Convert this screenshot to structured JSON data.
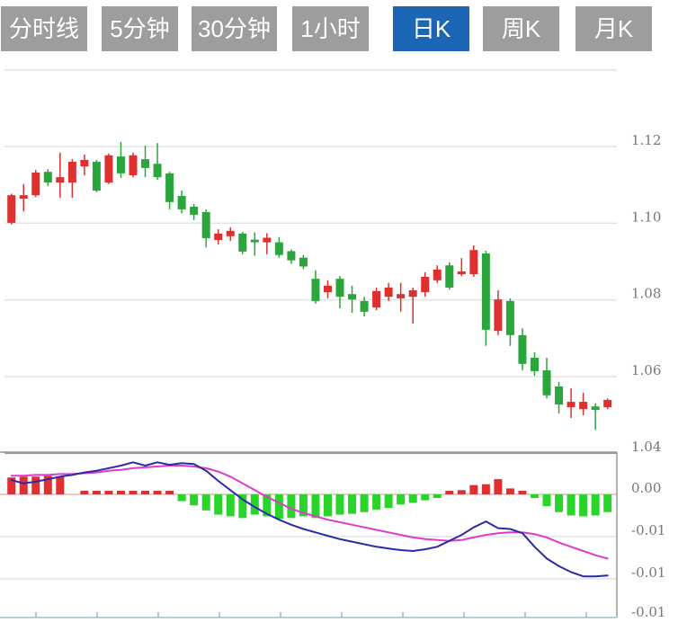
{
  "toolbar": {
    "buttons": [
      {
        "label": "分时线",
        "active": false
      },
      {
        "label": "5分钟",
        "active": false
      },
      {
        "label": "30分钟",
        "active": false
      },
      {
        "label": "1小时",
        "active": false
      },
      {
        "label": "日K",
        "active": true
      },
      {
        "label": "周K",
        "active": false
      },
      {
        "label": "月K",
        "active": false
      }
    ],
    "active_bg": "#1B66B5",
    "inactive_bg": "#9D9D9D",
    "text_color": "#FFFFFF"
  },
  "price_axis": {
    "labels": [
      "1.12",
      "1.10",
      "1.08",
      "1.06",
      "1.04"
    ],
    "values": [
      1.12,
      1.1,
      1.08,
      1.06,
      1.04
    ],
    "unlabeled_gridline": 1.14
  },
  "macd_axis": {
    "labels": [
      "0.00",
      "-0.01",
      "-0.01",
      "-0.01"
    ],
    "values": [
      0,
      -0.005,
      -0.01,
      -0.015
    ]
  },
  "colors": {
    "up": "#DF3030",
    "down": "#2BA63C",
    "macd_up": "#E02F2F",
    "macd_down": "#2BD42B",
    "dif": "#2B2BA8",
    "dea": "#DD3BCE",
    "grid": "#E2E2E2",
    "zero_line": "#F0B4B4",
    "pane_border": "#999999",
    "bottom_axis": "#B9CDD6",
    "tick": "#9DB8C4",
    "axis_text": "#777777"
  },
  "chart_data": {
    "type": "candlestick",
    "panes": [
      "price",
      "macd"
    ],
    "visible_price_range": [
      1.04,
      1.14
    ],
    "visible_macd_range": [
      -0.015,
      0.005
    ],
    "grid": true,
    "candles_ochl": [
      [
        1.1001,
        1.1073,
        1.1077,
        1.0997
      ],
      [
        1.1064,
        1.1073,
        1.1102,
        1.1031
      ],
      [
        1.1073,
        1.1132,
        1.1139,
        1.1068
      ],
      [
        1.1134,
        1.1106,
        1.1141,
        1.1097
      ],
      [
        1.1106,
        1.112,
        1.1184,
        1.1066
      ],
      [
        1.1106,
        1.116,
        1.1167,
        1.1066
      ],
      [
        1.1148,
        1.1165,
        1.1179,
        1.1125
      ],
      [
        1.116,
        1.1085,
        1.1165,
        1.1081
      ],
      [
        1.1106,
        1.1177,
        1.1182,
        1.1102
      ],
      [
        1.1174,
        1.113,
        1.1212,
        1.1118
      ],
      [
        1.1125,
        1.1177,
        1.1184,
        1.112
      ],
      [
        1.1167,
        1.1144,
        1.1202,
        1.112
      ],
      [
        1.1155,
        1.112,
        1.1209,
        1.1113
      ],
      [
        1.113,
        1.1055,
        1.1134,
        1.1036
      ],
      [
        1.1071,
        1.1036,
        1.1085,
        1.1026
      ],
      [
        1.1043,
        1.1022,
        1.105,
        1.1008
      ],
      [
        1.1029,
        1.0961,
        1.1036,
        1.0937
      ],
      [
        1.0956,
        1.0973,
        1.0984,
        1.0944
      ],
      [
        1.0966,
        1.098,
        1.0989,
        1.0954
      ],
      [
        1.0973,
        1.0926,
        1.0977,
        1.0919
      ],
      [
        1.0957,
        1.095,
        1.0976,
        1.0915
      ],
      [
        1.095,
        1.0962,
        1.0974,
        1.0919
      ],
      [
        1.095,
        1.0917,
        1.0964,
        1.091
      ],
      [
        1.0927,
        1.0903,
        1.0932,
        1.0894
      ],
      [
        1.091,
        1.0887,
        1.0917,
        1.088
      ],
      [
        1.0855,
        1.0797,
        1.0877,
        1.079
      ],
      [
        1.082,
        1.0837,
        1.0851,
        1.0804
      ],
      [
        1.0855,
        1.0808,
        1.0862,
        1.0778
      ],
      [
        1.0815,
        1.0801,
        1.0837,
        1.0766
      ],
      [
        1.0797,
        1.0769,
        1.0808,
        1.0757
      ],
      [
        1.078,
        1.0823,
        1.0832,
        1.0773
      ],
      [
        1.0808,
        1.0832,
        1.0844,
        1.0797
      ],
      [
        1.0804,
        1.0815,
        1.0844,
        1.0769
      ],
      [
        1.0808,
        1.0825,
        1.0832,
        1.0738
      ],
      [
        1.082,
        1.086,
        1.0872,
        1.0808
      ],
      [
        1.0851,
        1.0879,
        1.089,
        1.0844
      ],
      [
        1.089,
        1.0832,
        1.0898,
        1.0827
      ],
      [
        1.0867,
        1.0874,
        1.0909,
        1.0862
      ],
      [
        1.0867,
        1.093,
        1.0942,
        1.086
      ],
      [
        1.0921,
        1.0722,
        1.0928,
        1.068
      ],
      [
        1.0719,
        1.0801,
        1.0825,
        1.0708
      ],
      [
        1.0797,
        1.0708,
        1.0804,
        1.068
      ],
      [
        1.0708,
        1.0633,
        1.0726,
        1.0616
      ],
      [
        1.0649,
        1.0614,
        1.0663,
        1.0602
      ],
      [
        1.0616,
        1.0551,
        1.0649,
        1.0543
      ],
      [
        1.0574,
        1.0527,
        1.0586,
        1.0504
      ],
      [
        1.052,
        1.0534,
        1.0569,
        1.0492
      ],
      [
        1.0515,
        1.0534,
        1.0558,
        1.0499
      ],
      [
        1.0522,
        1.0513,
        1.053,
        1.0461
      ],
      [
        1.052,
        1.0539,
        1.0543,
        1.0515
      ]
    ],
    "macd_histogram": [
      0.002,
      0.0021,
      0.0021,
      0.0022,
      0.0021,
      0.0,
      0.0003,
      0.0003,
      0.0002,
      0.0003,
      0.0002,
      0.0003,
      0.0002,
      0.0003,
      -0.0008,
      -0.0013,
      -0.0019,
      -0.0024,
      -0.0026,
      -0.0028,
      -0.0024,
      -0.0026,
      -0.0029,
      -0.0028,
      -0.0026,
      -0.0028,
      -0.0026,
      -0.0024,
      -0.0023,
      -0.0021,
      -0.0018,
      -0.0016,
      -0.0012,
      -0.001,
      -0.0007,
      -0.0004,
      0.0003,
      0.0005,
      0.0011,
      0.0012,
      0.0018,
      0.0007,
      0.0004,
      -0.0002,
      -0.0014,
      -0.0021,
      -0.0025,
      -0.0026,
      -0.0025,
      -0.0021
    ],
    "dif_line": [
      0.0017,
      0.0013,
      0.0015,
      0.0018,
      0.0021,
      0.0023,
      0.0026,
      0.0028,
      0.0031,
      0.0034,
      0.0038,
      0.0034,
      0.0038,
      0.0035,
      0.0037,
      0.0036,
      0.0028,
      0.0016,
      0.0005,
      -0.0006,
      -0.0015,
      -0.0023,
      -0.003,
      -0.0036,
      -0.0041,
      -0.0045,
      -0.0049,
      -0.0053,
      -0.0056,
      -0.0059,
      -0.0062,
      -0.0064,
      -0.0066,
      -0.0067,
      -0.0065,
      -0.0062,
      -0.0055,
      -0.0048,
      -0.0039,
      -0.0032,
      -0.004,
      -0.0041,
      -0.0046,
      -0.0062,
      -0.0076,
      -0.0085,
      -0.0092,
      -0.0097,
      -0.0097,
      -0.0096
    ],
    "dea_line": [
      0.0022,
      0.0022,
      0.0023,
      0.0023,
      0.0024,
      0.0024,
      0.0025,
      0.0026,
      0.0028,
      0.0029,
      0.0031,
      0.0032,
      0.0033,
      0.0034,
      0.0034,
      0.0033,
      0.0031,
      0.0027,
      0.0021,
      0.0013,
      0.0005,
      -0.0003,
      -0.001,
      -0.0017,
      -0.0022,
      -0.0026,
      -0.003,
      -0.0033,
      -0.0036,
      -0.0039,
      -0.0042,
      -0.0045,
      -0.0048,
      -0.0051,
      -0.0053,
      -0.0054,
      -0.0055,
      -0.0054,
      -0.0051,
      -0.0048,
      -0.0046,
      -0.0045,
      -0.0045,
      -0.0047,
      -0.0051,
      -0.0057,
      -0.0062,
      -0.0067,
      -0.0072,
      -0.0076
    ]
  }
}
